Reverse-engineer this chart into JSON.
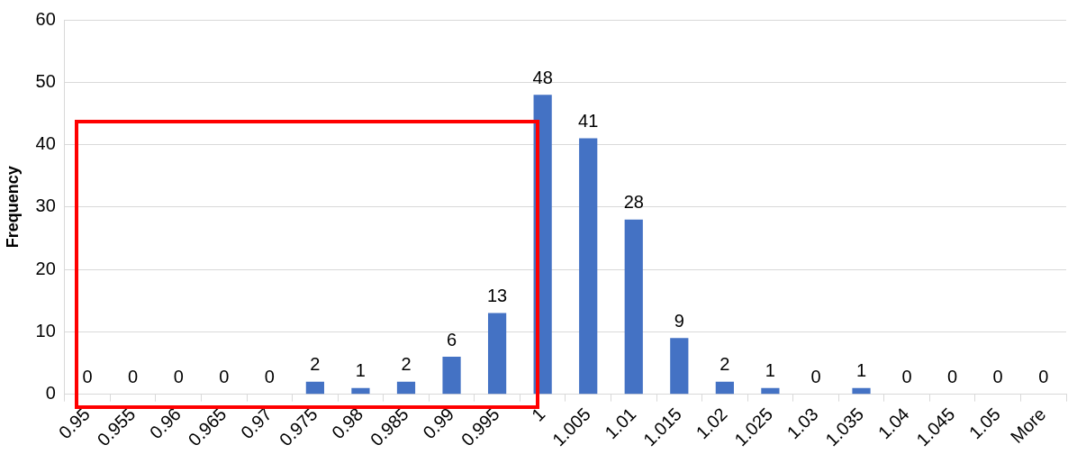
{
  "chart_data": {
    "type": "bar",
    "ylabel": "Frequency",
    "categories": [
      "0.95",
      "0.955",
      "0.96",
      "0.965",
      "0.97",
      "0.975",
      "0.98",
      "0.985",
      "0.99",
      "0.995",
      "1",
      "1.005",
      "1.01",
      "1.015",
      "1.02",
      "1.025",
      "1.03",
      "1.035",
      "1.04",
      "1.045",
      "1.05",
      "More"
    ],
    "values": [
      0,
      0,
      0,
      0,
      0,
      2,
      1,
      2,
      6,
      13,
      48,
      41,
      28,
      9,
      2,
      1,
      0,
      1,
      0,
      0,
      0,
      0
    ],
    "color": "#4472c4",
    "ylim": [
      0,
      60
    ],
    "yticks": [
      0,
      10,
      20,
      30,
      40,
      50,
      60
    ],
    "grid": "y",
    "legend": false,
    "data_labels": true
  }
}
